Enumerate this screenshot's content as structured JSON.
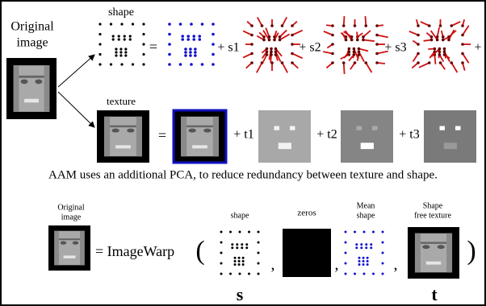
{
  "top": {
    "original_label": [
      "Original",
      "image"
    ],
    "shape_label": "shape",
    "texture_label": "texture",
    "shape_terms": [
      "=",
      "+ s1",
      "+ s2",
      "+ s3",
      "+"
    ],
    "texture_terms": [
      "=",
      "+ t1",
      "+ t2",
      "+ t3"
    ]
  },
  "note": "AAM uses an additional PCA, to reduce redundancy between texture and shape.",
  "bottom": {
    "original_label": [
      "Original",
      "image"
    ],
    "warp": "= ImageWarp",
    "open": "(",
    "separators": [
      ",",
      ",",
      ","
    ],
    "close": ")",
    "shape_label": "shape",
    "zeros_label": "zeros",
    "mean_label": [
      "Mean",
      "shape"
    ],
    "free_label": [
      "Shape",
      "free texture"
    ],
    "s": "s",
    "t": "t"
  }
}
